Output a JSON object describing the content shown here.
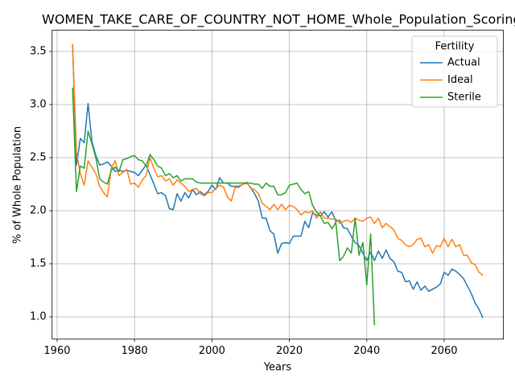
{
  "chart_data": {
    "type": "line",
    "title": "WOMEN_TAKE_CARE_OF_COUNTRY_NOT_HOME_Whole_Population_Scoring",
    "x_label": "Years",
    "y_label": "% of Whole Population",
    "legend_title": "Fertility",
    "legend_position": "upper right",
    "grid": true,
    "xlim": [
      1958.7,
      2075.3
    ],
    "ylim": [
      0.79,
      3.7
    ],
    "xticks": [
      1960,
      1980,
      2000,
      2020,
      2040,
      2060
    ],
    "yticks": [
      {
        "value": 1.0,
        "label": "1.0"
      },
      {
        "value": 1.5,
        "label": "1.5"
      },
      {
        "value": 2.0,
        "label": "2.0"
      },
      {
        "value": 2.5,
        "label": "2.5"
      },
      {
        "value": 3.0,
        "label": "3.0"
      },
      {
        "value": 3.5,
        "label": "3.5"
      }
    ],
    "x": [
      1964,
      1965,
      1966,
      1967,
      1968,
      1969,
      1970,
      1971,
      1972,
      1973,
      1974,
      1975,
      1976,
      1977,
      1978,
      1979,
      1980,
      1981,
      1982,
      1983,
      1984,
      1985,
      1986,
      1987,
      1988,
      1989,
      1990,
      1991,
      1992,
      1993,
      1994,
      1995,
      1996,
      1997,
      1998,
      1999,
      2000,
      2001,
      2002,
      2003,
      2004,
      2005,
      2006,
      2007,
      2008,
      2009,
      2010,
      2011,
      2012,
      2013,
      2014,
      2015,
      2016,
      2017,
      2018,
      2019,
      2020,
      2021,
      2022,
      2023,
      2024,
      2025,
      2026,
      2027,
      2028,
      2029,
      2030,
      2031,
      2032,
      2033,
      2034,
      2035,
      2036,
      2037,
      2038,
      2039,
      2040,
      2041,
      2042,
      2043,
      2044,
      2045,
      2046,
      2047,
      2048,
      2049,
      2050,
      2051,
      2052,
      2053,
      2054,
      2055,
      2056,
      2057,
      2058,
      2059,
      2060,
      2061,
      2062,
      2063,
      2064,
      2065,
      2066,
      2067,
      2068,
      2069,
      2070
    ],
    "series": [
      {
        "name": "Actual",
        "color": "#1f77b4",
        "values": [
          3.57,
          2.43,
          2.68,
          2.64,
          3.01,
          2.65,
          2.52,
          2.43,
          2.44,
          2.46,
          2.42,
          2.37,
          2.38,
          2.37,
          2.38,
          2.37,
          2.36,
          2.33,
          2.38,
          2.43,
          2.34,
          2.25,
          2.16,
          2.17,
          2.14,
          2.02,
          2.01,
          2.16,
          2.09,
          2.17,
          2.12,
          2.2,
          2.15,
          2.18,
          2.15,
          2.18,
          2.24,
          2.2,
          2.31,
          2.26,
          2.26,
          2.23,
          2.23,
          2.23,
          2.25,
          2.26,
          2.22,
          2.16,
          2.09,
          1.93,
          1.93,
          1.81,
          1.78,
          1.6,
          1.69,
          1.7,
          1.69,
          1.76,
          1.76,
          1.76,
          1.9,
          1.84,
          1.98,
          1.96,
          1.95,
          1.99,
          1.94,
          1.99,
          1.9,
          1.91,
          1.84,
          1.83,
          1.76,
          1.7,
          1.67,
          1.6,
          1.53,
          1.61,
          1.53,
          1.62,
          1.55,
          1.63,
          1.55,
          1.52,
          1.43,
          1.42,
          1.33,
          1.34,
          1.26,
          1.33,
          1.25,
          1.29,
          1.24,
          1.26,
          1.28,
          1.31,
          1.42,
          1.39,
          1.45,
          1.43,
          1.4,
          1.36,
          1.29,
          1.22,
          1.13,
          1.07,
          0.99
        ]
      },
      {
        "name": "Ideal",
        "color": "#ff7f0e",
        "values": [
          3.57,
          2.55,
          2.35,
          2.24,
          2.47,
          2.41,
          2.35,
          2.23,
          2.17,
          2.13,
          2.4,
          2.47,
          2.33,
          2.36,
          2.39,
          2.25,
          2.26,
          2.22,
          2.29,
          2.33,
          2.5,
          2.4,
          2.32,
          2.33,
          2.28,
          2.3,
          2.24,
          2.29,
          2.26,
          2.23,
          2.18,
          2.2,
          2.21,
          2.16,
          2.14,
          2.17,
          2.17,
          2.21,
          2.24,
          2.22,
          2.13,
          2.09,
          2.22,
          2.22,
          2.25,
          2.27,
          2.21,
          2.2,
          2.16,
          2.07,
          2.04,
          2.01,
          2.06,
          2.01,
          2.06,
          2.01,
          2.05,
          2.04,
          2.01,
          1.96,
          1.99,
          1.98,
          2.0,
          1.93,
          1.99,
          1.93,
          1.93,
          1.92,
          1.92,
          1.88,
          1.9,
          1.91,
          1.89,
          1.93,
          1.91,
          1.9,
          1.93,
          1.94,
          1.88,
          1.93,
          1.84,
          1.88,
          1.85,
          1.82,
          1.74,
          1.72,
          1.68,
          1.66,
          1.68,
          1.73,
          1.74,
          1.66,
          1.68,
          1.6,
          1.67,
          1.66,
          1.74,
          1.66,
          1.73,
          1.66,
          1.68,
          1.58,
          1.58,
          1.51,
          1.49,
          1.42,
          1.39
        ]
      },
      {
        "name": "Sterile",
        "color": "#2ca02c",
        "values": [
          3.16,
          2.18,
          2.42,
          2.4,
          2.75,
          2.63,
          2.5,
          2.3,
          2.27,
          2.25,
          2.38,
          2.41,
          2.37,
          2.48,
          2.49,
          2.51,
          2.52,
          2.48,
          2.47,
          2.42,
          2.53,
          2.48,
          2.42,
          2.4,
          2.33,
          2.35,
          2.31,
          2.33,
          2.28,
          2.3,
          2.3,
          2.3,
          2.27,
          2.26,
          2.26,
          2.26,
          2.26,
          2.26,
          2.26,
          2.26,
          2.26,
          2.26,
          2.26,
          2.26,
          2.26,
          2.26,
          2.26,
          2.25,
          2.25,
          2.21,
          2.26,
          2.23,
          2.23,
          2.15,
          2.15,
          2.17,
          2.24,
          2.25,
          2.26,
          2.2,
          2.16,
          2.18,
          2.05,
          1.99,
          1.95,
          1.88,
          1.89,
          1.83,
          1.89,
          1.53,
          1.57,
          1.65,
          1.6,
          1.93,
          1.58,
          1.7,
          1.3,
          1.78,
          0.92,
          null,
          null,
          null,
          null,
          null,
          null,
          null,
          null,
          null,
          null,
          null,
          null,
          null,
          null,
          null,
          null,
          null,
          null,
          null,
          null,
          null,
          null,
          null,
          null,
          null,
          null,
          null,
          null
        ]
      }
    ]
  }
}
